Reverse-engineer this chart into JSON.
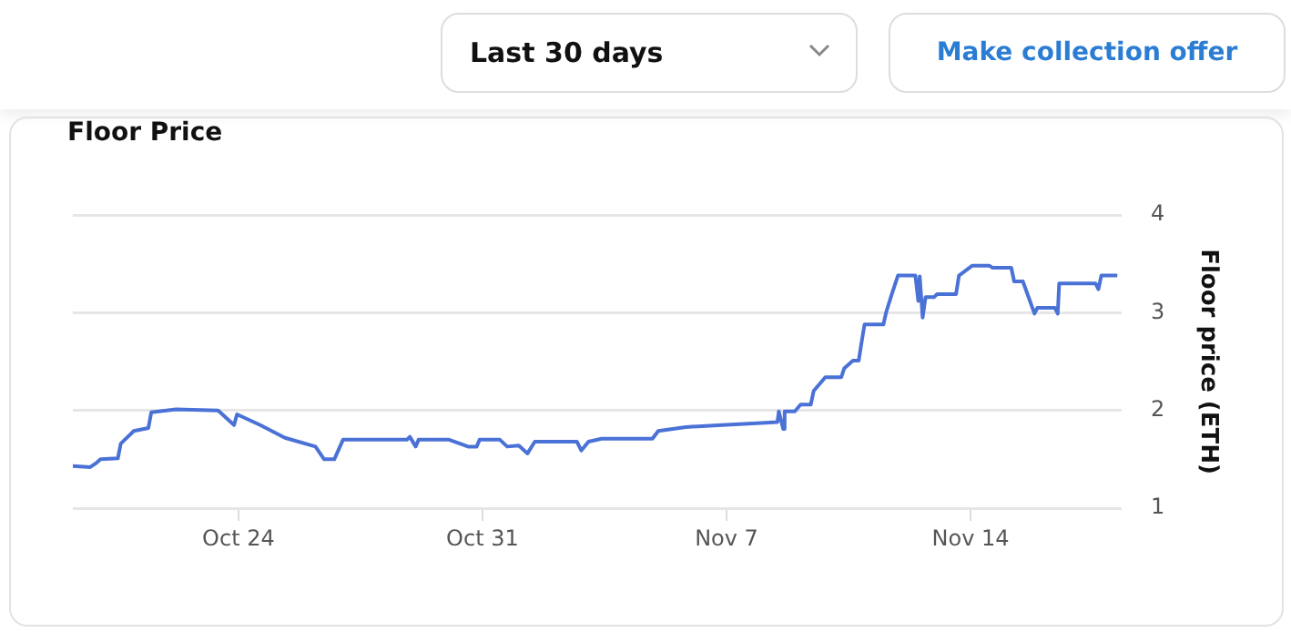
{
  "chart_data": {
    "type": "line",
    "title": "Floor Price",
    "ylabel": "Floor price (ETH)",
    "annotations": [
      "Last 30 days",
      "Make collection offer"
    ],
    "x": [
      "--10-19T06:00",
      "--10-19T18:00",
      "--10-19T22:00",
      "--10-20T01:00",
      "--10-20T13:00",
      "--10-20T15:00",
      "--10-21T00:00",
      "--10-21T10:00",
      "--10-21T12:00",
      "--10-22T05:00",
      "--10-23T10:00",
      "--10-23T21:00",
      "--10-23T23:00",
      "--10-24T15:00",
      "--10-25T08:00",
      "--10-26T05:00",
      "--10-26T11:00",
      "--10-26T18:00",
      "--10-27T00:00",
      "--10-28T20:00",
      "--10-28T22:00",
      "--10-29T02:00",
      "--10-29T04:00",
      "--10-30T01:00",
      "--10-30T14:00",
      "--10-30T20:00",
      "--10-30T22:00",
      "--10-31T12:00",
      "--10-31T17:00",
      "--11-01T01:00",
      "--11-01T07:00",
      "--11-01T12:00",
      "--11-02T17:00",
      "--11-02T20:00",
      "--11-03T01:00",
      "--11-03T10:00",
      "--11-04T21:00",
      "--11-05T01:00",
      "--11-05T20:00",
      "--11-06T21:00",
      "--11-08T00:00",
      "--11-08T11:00",
      "--11-08T12:00",
      "--11-08T15:00",
      "--11-08T16:00",
      "--11-08T23:00",
      "--11-09T03:00",
      "--11-09T10:00",
      "--11-09T12:00",
      "--11-09T20:00",
      "--11-10T07:00",
      "--11-10T09:00",
      "--11-10T15:00",
      "--11-10T19:00",
      "--11-10T21:00",
      "--11-10T23:00",
      "--11-11T12:00",
      "--11-11T14:00",
      "--11-11T18:00",
      "--11-11T22:00",
      "--11-12T10:00",
      "--11-12T12:00",
      "--11-12T13:00",
      "--11-12T15:00",
      "--11-12T17:00",
      "--11-12T23:00",
      "--11-13T01:00",
      "--11-13T14:00",
      "--11-13T16:00",
      "--11-14T01:00",
      "--11-14T13:00",
      "--11-14T15:00",
      "--11-15T04:00",
      "--11-15T06:00",
      "--11-15T12:00",
      "--11-15T20:00",
      "--11-15T22:00",
      "--11-16T10:00",
      "--11-16T12:00",
      "--11-16T13:00",
      "--11-17T14:00",
      "--11-17T16:00",
      "--11-17T18:00",
      "--11-18T05:00"
    ],
    "series": [
      {
        "color": "#4a72d6",
        "values": [
          1.43,
          1.42,
          1.46,
          1.5,
          1.51,
          1.66,
          1.79,
          1.82,
          1.98,
          2.01,
          2.0,
          1.85,
          1.96,
          1.85,
          1.72,
          1.63,
          1.5,
          1.5,
          1.7,
          1.7,
          1.73,
          1.63,
          1.7,
          1.7,
          1.63,
          1.63,
          1.7,
          1.7,
          1.63,
          1.64,
          1.56,
          1.68,
          1.68,
          1.59,
          1.68,
          1.71,
          1.71,
          1.79,
          1.83,
          1.85,
          1.87,
          1.88,
          1.99,
          1.81,
          1.99,
          1.99,
          2.06,
          2.06,
          2.2,
          2.34,
          2.34,
          2.43,
          2.51,
          2.51,
          2.7,
          2.88,
          2.88,
          3.01,
          3.2,
          3.38,
          3.38,
          3.12,
          3.37,
          2.95,
          3.16,
          3.16,
          3.19,
          3.19,
          3.38,
          3.48,
          3.48,
          3.46,
          3.46,
          3.32,
          3.32,
          2.99,
          3.05,
          3.05,
          2.99,
          3.3,
          3.3,
          3.24,
          3.38,
          3.38
        ]
      }
    ],
    "xlim": [
      "--10-19T06:00",
      "--11-18T08:00"
    ],
    "xticks": [
      {
        "value": "--10-24",
        "label": "Oct 24"
      },
      {
        "value": "--10-31",
        "label": "Oct 31"
      },
      {
        "value": "--11-07",
        "label": "Nov 7"
      },
      {
        "value": "--11-14",
        "label": "Nov 14"
      }
    ],
    "ylim": [
      1,
      4
    ],
    "yticks": [
      1,
      2,
      3,
      4
    ],
    "grid": "y",
    "legend": false,
    "marker": "none",
    "line_style": "solid"
  }
}
